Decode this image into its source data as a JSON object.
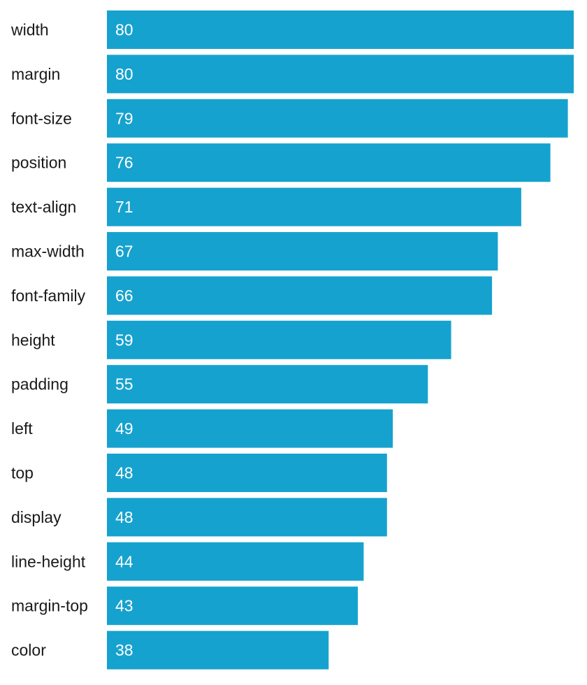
{
  "chart_data": {
    "type": "bar",
    "orientation": "horizontal",
    "categories": [
      "width",
      "margin",
      "font-size",
      "position",
      "text-align",
      "max-width",
      "font-family",
      "height",
      "padding",
      "left",
      "top",
      "display",
      "line-height",
      "margin-top",
      "color"
    ],
    "values": [
      80,
      80,
      79,
      76,
      71,
      67,
      66,
      59,
      55,
      49,
      48,
      48,
      44,
      43,
      38
    ],
    "xlim": [
      0,
      80
    ],
    "grid": false,
    "bar_color": "#16a2ce",
    "value_label_color": "#ffffff"
  }
}
